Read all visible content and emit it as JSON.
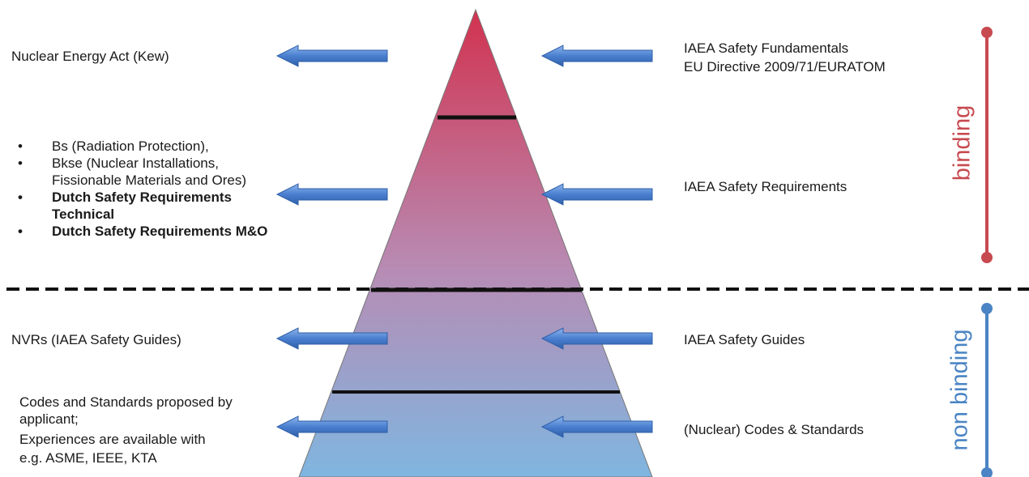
{
  "colors": {
    "pyramid_top": "#d2324f",
    "pyramid_mid": "#b88bb3",
    "pyramid_bottom": "#7fb6e0",
    "arrow": "#4a7fcf",
    "binding": "#c74a50",
    "non_binding": "#4a84c4",
    "divider": "#111111"
  },
  "left": {
    "level1": "Nuclear Energy Act (Kew)",
    "level2_items": [
      {
        "text": "Bs (Radiation Protection),",
        "bold": false
      },
      {
        "text": "Bkse (Nuclear Installations,",
        "bold": false
      },
      {
        "text": "Fissionable Materials and Ores)",
        "bold": false,
        "no_bullet": true
      },
      {
        "text": "Dutch Safety Requirements",
        "bold": true
      },
      {
        "text": "Technical",
        "bold": true,
        "no_bullet": true
      },
      {
        "text": "Dutch Safety Requirements M&O",
        "bold": true
      }
    ],
    "level3": "NVRs (IAEA Safety Guides)",
    "level4_lines": [
      "Codes and Standards proposed by",
      "applicant;",
      "Experiences are available with",
      "e.g. ASME, IEEE, KTA"
    ]
  },
  "right": {
    "level1_lines": [
      "IAEA Safety Fundamentals",
      "EU Directive 2009/71/EURATOM"
    ],
    "level2": "IAEA Safety Requirements",
    "level3": "IAEA Safety Guides",
    "level4": "(Nuclear) Codes & Standards"
  },
  "scale": {
    "binding_label": "binding",
    "non_binding_label": "non binding"
  }
}
